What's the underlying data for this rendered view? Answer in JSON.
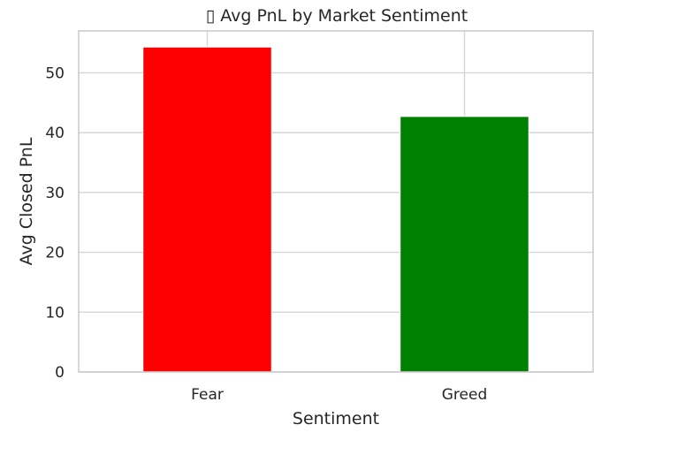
{
  "chart_data": {
    "type": "bar",
    "title": "▯ Avg PnL by Market Sentiment",
    "xlabel": "Sentiment",
    "ylabel": "Avg Closed PnL",
    "categories": [
      "Fear",
      "Greed"
    ],
    "values": [
      54.3,
      42.7
    ],
    "bar_colors": [
      "#ff0000",
      "#008000"
    ],
    "ylim": [
      0,
      57.0
    ],
    "yticks": [
      0,
      10,
      20,
      30,
      40,
      50
    ],
    "grid": true
  }
}
